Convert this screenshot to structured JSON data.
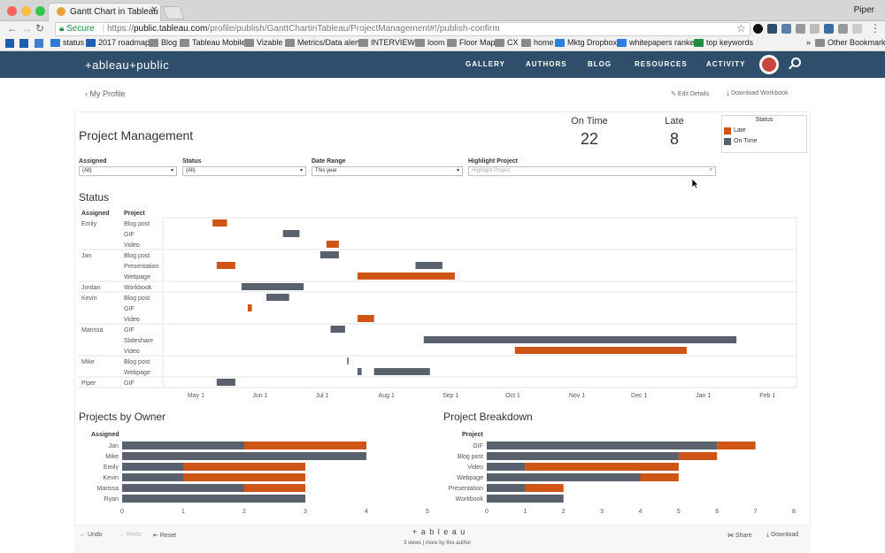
{
  "browser": {
    "tab_title": "Gantt Chart in Tableau - Tech",
    "profile_name": "Piper",
    "secure_label": "Secure",
    "url_scheme": "https://",
    "url_host": "public.tableau.com",
    "url_path": "/profile/publish/GanttChartinTableau/ProjectManagement#!/publish-confirm",
    "bookmarks": [
      "status",
      "2017 roadmap",
      "Blog",
      "Tableau Mobile",
      "Vizable",
      "Metrics/Data alerts",
      "INTERVIEWS",
      "loom",
      "Floor Map",
      "CX",
      "home",
      "Mktg Dropbox",
      "whitepapers ranked",
      "top keywords"
    ],
    "other_bookmarks": "Other Bookmarks",
    "more_bookmarks": "»"
  },
  "site": {
    "logo": "+ableau+public",
    "nav": [
      "GALLERY",
      "AUTHORS",
      "BLOG",
      "RESOURCES",
      "ACTIVITY"
    ]
  },
  "subbar": {
    "back": "My Profile",
    "edit": "Edit Details",
    "download": "Download Workbook"
  },
  "dashboard": {
    "title": "Project Management",
    "kpi": {
      "on_time_label": "On Time",
      "on_time_value": "22",
      "late_label": "Late",
      "late_value": "8"
    },
    "legend": {
      "title": "Status",
      "late": "Late",
      "on_time": "On Time"
    },
    "colors": {
      "late": "#cf5516",
      "on_time": "#58616c"
    },
    "filters": {
      "assigned_label": "Assigned",
      "assigned_value": "(All)",
      "status_label": "Status",
      "status_value": "(All)",
      "date_label": "Date Range",
      "date_value": "This year",
      "highlight_label": "Highlight Project",
      "highlight_placeholder": "Highlight Project"
    }
  },
  "status_chart": {
    "title": "Status",
    "col_assigned": "Assigned",
    "col_project": "Project"
  },
  "owner_chart": {
    "title": "Projects by Owner",
    "axis_header": "Assigned"
  },
  "breakdown_chart": {
    "title": "Project Breakdown",
    "axis_header": "Project"
  },
  "bottom": {
    "undo": "Undo",
    "redo": "Redo",
    "reset": "Reset",
    "brand": "+ a b l e a u",
    "views": "3 views | more by this author",
    "share": "Share",
    "download": "Download"
  },
  "chart_data": [
    {
      "type": "gantt",
      "title": "Status",
      "x_ticks": [
        "May 1",
        "Jun 1",
        "Jul 1",
        "Aug 1",
        "Sep 1",
        "Oct 1",
        "Nov 1",
        "Dec 1",
        "Jan 1",
        "Feb 1"
      ],
      "groups": [
        {
          "assigned": "Emily",
          "rows": [
            {
              "project": "Blog post",
              "bars": [
                {
                  "start": "2017-05-09",
                  "end": "2017-05-16",
                  "status": "Late"
                }
              ]
            },
            {
              "project": "GIF",
              "bars": [
                {
                  "start": "2017-06-12",
                  "end": "2017-06-20",
                  "status": "On Time"
                }
              ]
            },
            {
              "project": "Video",
              "bars": [
                {
                  "start": "2017-07-03",
                  "end": "2017-07-09",
                  "status": "Late"
                }
              ]
            }
          ]
        },
        {
          "assigned": "Jan",
          "rows": [
            {
              "project": "Blog post",
              "bars": [
                {
                  "start": "2017-06-30",
                  "end": "2017-07-09",
                  "status": "On Time"
                }
              ]
            },
            {
              "project": "Presentation",
              "bars": [
                {
                  "start": "2017-05-11",
                  "end": "2017-05-20",
                  "status": "Late"
                },
                {
                  "start": "2017-08-15",
                  "end": "2017-08-28",
                  "status": "On Time"
                }
              ]
            },
            {
              "project": "Webpage",
              "bars": [
                {
                  "start": "2017-07-18",
                  "end": "2017-09-03",
                  "status": "Late"
                }
              ]
            }
          ]
        },
        {
          "assigned": "Jordan",
          "rows": [
            {
              "project": "Workbook",
              "bars": [
                {
                  "start": "2017-05-23",
                  "end": "2017-06-22",
                  "status": "On Time"
                }
              ]
            }
          ]
        },
        {
          "assigned": "Kevin",
          "rows": [
            {
              "project": "Blog post",
              "bars": [
                {
                  "start": "2017-06-04",
                  "end": "2017-06-15",
                  "status": "On Time"
                }
              ]
            },
            {
              "project": "GIF",
              "bars": [
                {
                  "start": "2017-05-26",
                  "end": "2017-05-28",
                  "status": "Late"
                }
              ]
            },
            {
              "project": "Video",
              "bars": [
                {
                  "start": "2017-07-18",
                  "end": "2017-07-26",
                  "status": "Late"
                }
              ]
            }
          ]
        },
        {
          "assigned": "Marissa",
          "rows": [
            {
              "project": "GIF",
              "bars": [
                {
                  "start": "2017-07-05",
                  "end": "2017-07-12",
                  "status": "On Time"
                }
              ]
            },
            {
              "project": "Slideshare",
              "bars": [
                {
                  "start": "2017-08-19",
                  "end": "2018-01-17",
                  "status": "On Time"
                }
              ]
            },
            {
              "project": "Video",
              "bars": [
                {
                  "start": "2017-10-02",
                  "end": "2017-12-24",
                  "status": "Late"
                }
              ]
            }
          ]
        },
        {
          "assigned": "Mike",
          "rows": [
            {
              "project": "Blog post",
              "bars": [
                {
                  "start": "2017-07-13",
                  "end": "2017-07-13",
                  "status": "On Time"
                }
              ]
            },
            {
              "project": "Webpage",
              "bars": [
                {
                  "start": "2017-07-18",
                  "end": "2017-07-20",
                  "status": "On Time"
                },
                {
                  "start": "2017-07-26",
                  "end": "2017-08-22",
                  "status": "On Time"
                }
              ]
            }
          ]
        },
        {
          "assigned": "Piper",
          "rows": [
            {
              "project": "GIF",
              "bars": [
                {
                  "start": "2017-05-11",
                  "end": "2017-05-20",
                  "status": "On Time"
                }
              ]
            }
          ]
        }
      ]
    },
    {
      "type": "bar",
      "title": "Projects by Owner",
      "stacked": true,
      "orientation": "horizontal",
      "categories": [
        "Jan",
        "Mike",
        "Emily",
        "Kevin",
        "Marissa",
        "Ryan"
      ],
      "series": [
        {
          "name": "On Time",
          "values": [
            2,
            4,
            1,
            1,
            2,
            3
          ]
        },
        {
          "name": "Late",
          "values": [
            2,
            0,
            2,
            2,
            1,
            0
          ]
        }
      ],
      "xlim": [
        0,
        5
      ],
      "x_ticks": [
        "0",
        "1",
        "2",
        "3",
        "4",
        "5"
      ]
    },
    {
      "type": "bar",
      "title": "Project Breakdown",
      "stacked": true,
      "orientation": "horizontal",
      "categories": [
        "GIF",
        "Blog post",
        "Video",
        "Webpage",
        "Presentation",
        "Workbook"
      ],
      "series": [
        {
          "name": "On Time",
          "values": [
            6,
            5,
            1,
            4,
            1,
            2
          ]
        },
        {
          "name": "Late",
          "values": [
            1,
            1,
            4,
            1,
            1,
            0
          ]
        }
      ],
      "xlim": [
        0,
        8
      ],
      "x_ticks": [
        "0",
        "1",
        "2",
        "3",
        "4",
        "5",
        "6",
        "7",
        "8"
      ]
    }
  ]
}
